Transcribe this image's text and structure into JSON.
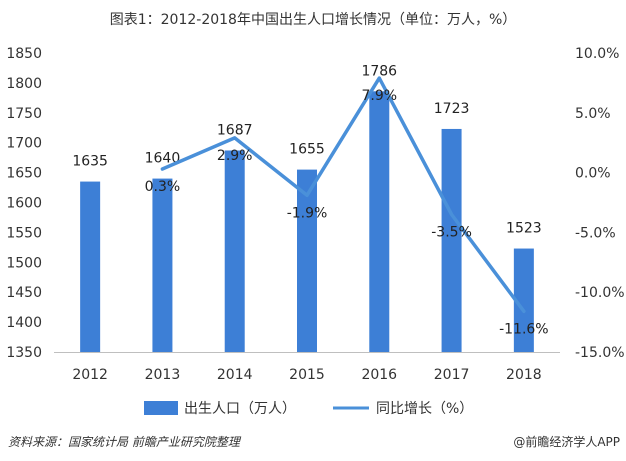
{
  "chart_data": {
    "type": "bar",
    "title": "图表1：2012-2018年中国出生人口增长情况（单位：万人，%）",
    "categories": [
      "2012",
      "2013",
      "2014",
      "2015",
      "2016",
      "2017",
      "2018"
    ],
    "series": [
      {
        "name": "出生人口（万人）",
        "type": "bar",
        "axis": "left",
        "values": [
          1635,
          1640,
          1687,
          1655,
          1786,
          1723,
          1523
        ],
        "labels": [
          "1635",
          "1640",
          "1687",
          "1655",
          "1786",
          "1723",
          "1523"
        ]
      },
      {
        "name": "同比增长（%）",
        "type": "line",
        "axis": "right",
        "values": [
          0.3,
          2.9,
          -1.9,
          7.9,
          -3.5,
          -11.6
        ],
        "x": [
          "2013",
          "2014",
          "2015",
          "2016",
          "2017",
          "2018"
        ],
        "labels": [
          "0.3%",
          "2.9%",
          "-1.9%",
          "7.9%",
          "-3.5%",
          "-11.6%"
        ]
      }
    ],
    "y_left": {
      "min": 1350,
      "max": 1850,
      "step": 50,
      "tick_labels": [
        "1350",
        "1400",
        "1450",
        "1500",
        "1550",
        "1600",
        "1650",
        "1700",
        "1750",
        "1800",
        "1850"
      ]
    },
    "y_right": {
      "min": -15,
      "max": 10,
      "step": 5,
      "tick_labels": [
        "-15.0%",
        "-10.0%",
        "-5.0%",
        "0.0%",
        "5.0%",
        "10.0%"
      ]
    },
    "grid": false,
    "legend_position": "bottom"
  },
  "colors": {
    "bar": "#3d7fd6",
    "line": "#4a90d9",
    "axis": "#bfbfbf"
  },
  "footer": {
    "source": "资料来源：国家统计局 前瞻产业研究院整理",
    "brand": "@前瞻经济学人APP"
  }
}
